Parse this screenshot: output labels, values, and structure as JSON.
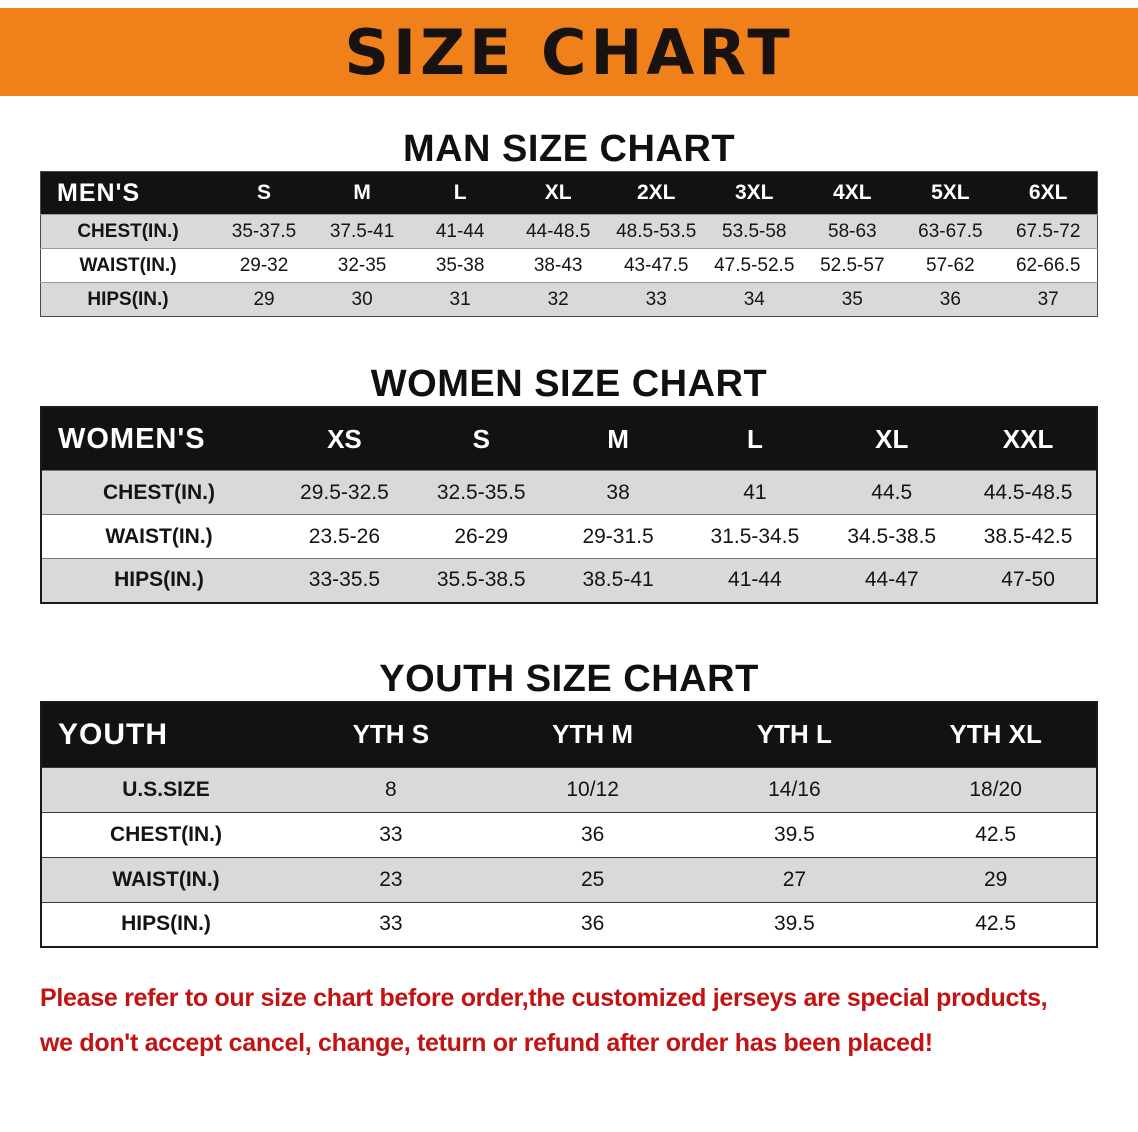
{
  "banner": {
    "title": "SIZE CHART",
    "background_color": "#f0811a",
    "text_color": "#181210"
  },
  "sections": [
    {
      "heading": "MAN SIZE CHART",
      "table": {
        "header_label": "MEN'S",
        "columns": [
          "S",
          "M",
          "L",
          "XL",
          "2XL",
          "3XL",
          "4XL",
          "5XL",
          "6XL"
        ],
        "rows": [
          {
            "label": "CHEST(IN.)",
            "values": [
              "35-37.5",
              "37.5-41",
              "41-44",
              "44-48.5",
              "48.5-53.5",
              "53.5-58",
              "58-63",
              "63-67.5",
              "67.5-72"
            ]
          },
          {
            "label": "WAIST(IN.)",
            "values": [
              "29-32",
              "32-35",
              "35-38",
              "38-43",
              "43-47.5",
              "47.5-52.5",
              "52.5-57",
              "57-62",
              "62-66.5"
            ]
          },
          {
            "label": "HIPS(IN.)",
            "values": [
              "29",
              "30",
              "31",
              "32",
              "33",
              "34",
              "35",
              "36",
              "37"
            ]
          }
        ]
      }
    },
    {
      "heading": "WOMEN SIZE CHART",
      "table": {
        "header_label": "WOMEN'S",
        "columns": [
          "XS",
          "S",
          "M",
          "L",
          "XL",
          "XXL"
        ],
        "rows": [
          {
            "label": "CHEST(IN.)",
            "values": [
              "29.5-32.5",
              "32.5-35.5",
              "38",
              "41",
              "44.5",
              "44.5-48.5"
            ]
          },
          {
            "label": "WAIST(IN.)",
            "values": [
              "23.5-26",
              "26-29",
              "29-31.5",
              "31.5-34.5",
              "34.5-38.5",
              "38.5-42.5"
            ]
          },
          {
            "label": "HIPS(IN.)",
            "values": [
              "33-35.5",
              "35.5-38.5",
              "38.5-41",
              "41-44",
              "44-47",
              "47-50"
            ]
          }
        ]
      }
    },
    {
      "heading": "YOUTH SIZE CHART",
      "table": {
        "header_label": "YOUTH",
        "columns": [
          "YTH S",
          "YTH M",
          "YTH L",
          "YTH XL"
        ],
        "rows": [
          {
            "label": "U.S.SIZE",
            "values": [
              "8",
              "10/12",
              "14/16",
              "18/20"
            ]
          },
          {
            "label": "CHEST(IN.)",
            "values": [
              "33",
              "36",
              "39.5",
              "42.5"
            ]
          },
          {
            "label": "WAIST(IN.)",
            "values": [
              "23",
              "25",
              "27",
              "29"
            ]
          },
          {
            "label": "HIPS(IN.)",
            "values": [
              "33",
              "36",
              "39.5",
              "42.5"
            ]
          }
        ]
      }
    }
  ],
  "note": {
    "color": "#c31212",
    "lines": [
      "Please refer to our size chart before order,the customized jerseys are special products,",
      "we don't accept cancel, change, teturn or refund after order has been placed!"
    ]
  }
}
